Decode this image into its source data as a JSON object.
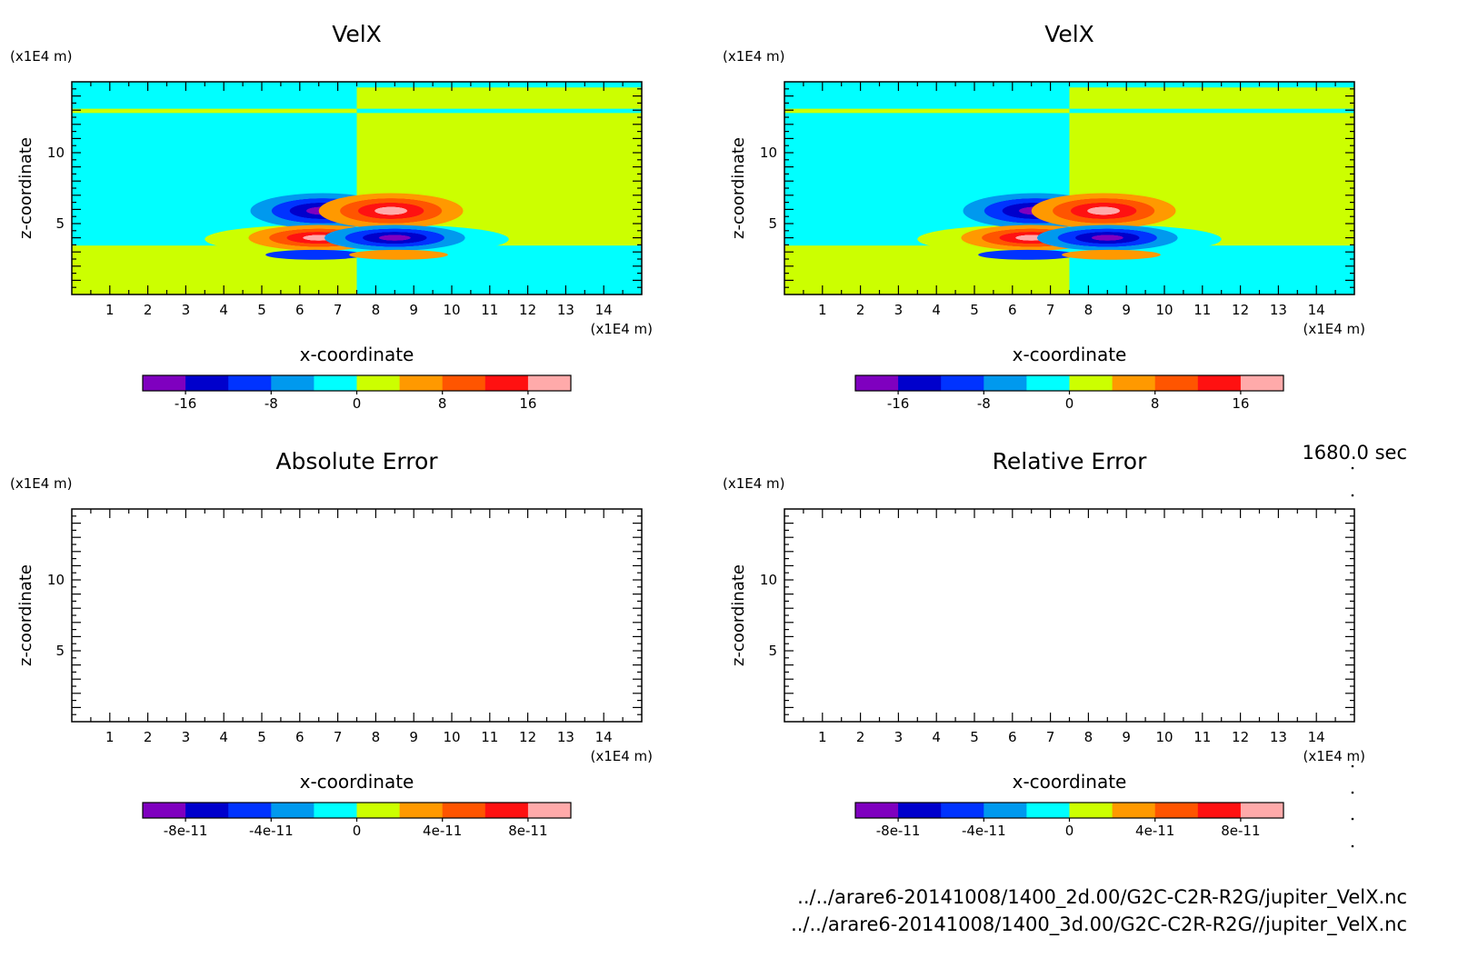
{
  "chart_data": [
    {
      "type": "heatmap",
      "title": "VelX",
      "xlabel": "x-coordinate",
      "ylabel": "z-coordinate",
      "x_unit": "(x1E4 m)",
      "y_unit": "(x1E4 m)",
      "xlim": [
        0,
        15
      ],
      "ylim": [
        0,
        15
      ],
      "x_ticks": [
        1,
        2,
        3,
        4,
        5,
        6,
        7,
        8,
        9,
        10,
        11,
        12,
        13,
        14
      ],
      "y_ticks": [
        5,
        10
      ],
      "colorbar": {
        "levels": [
          -20,
          -16,
          -12,
          -8,
          -4,
          0,
          4,
          8,
          12,
          16,
          20
        ],
        "tick_values": [
          -16,
          -8,
          0,
          8,
          16
        ],
        "tick_labels": [
          "-16",
          "-8",
          "0",
          "8",
          "16"
        ]
      },
      "filled": true
    },
    {
      "type": "heatmap",
      "title": "VelX",
      "xlabel": "x-coordinate",
      "ylabel": "z-coordinate",
      "x_unit": "(x1E4 m)",
      "y_unit": "(x1E4 m)",
      "xlim": [
        0,
        15
      ],
      "ylim": [
        0,
        15
      ],
      "x_ticks": [
        1,
        2,
        3,
        4,
        5,
        6,
        7,
        8,
        9,
        10,
        11,
        12,
        13,
        14
      ],
      "y_ticks": [
        5,
        10
      ],
      "colorbar": {
        "levels": [
          -20,
          -16,
          -12,
          -8,
          -4,
          0,
          4,
          8,
          12,
          16,
          20
        ],
        "tick_values": [
          -16,
          -8,
          0,
          8,
          16
        ],
        "tick_labels": [
          "-16",
          "-8",
          "0",
          "8",
          "16"
        ]
      },
      "filled": true
    },
    {
      "type": "heatmap",
      "title": "Absolute Error",
      "xlabel": "x-coordinate",
      "ylabel": "z-coordinate",
      "x_unit": "(x1E4 m)",
      "y_unit": "(x1E4 m)",
      "xlim": [
        0,
        15
      ],
      "ylim": [
        0,
        15
      ],
      "x_ticks": [
        1,
        2,
        3,
        4,
        5,
        6,
        7,
        8,
        9,
        10,
        11,
        12,
        13,
        14
      ],
      "y_ticks": [
        5,
        10
      ],
      "colorbar": {
        "levels": [
          -1e-10,
          -8e-11,
          -6e-11,
          -4e-11,
          -2e-11,
          0,
          2e-11,
          4e-11,
          6e-11,
          8e-11,
          1e-10
        ],
        "tick_values": [
          -8e-11,
          -4e-11,
          0,
          4e-11,
          8e-11
        ],
        "tick_labels": [
          "-8e-11",
          "-4e-11",
          "0",
          "4e-11",
          "8e-11"
        ]
      },
      "filled": false
    },
    {
      "type": "heatmap",
      "title": "Relative Error",
      "xlabel": "x-coordinate",
      "ylabel": "z-coordinate",
      "x_unit": "(x1E4 m)",
      "y_unit": "(x1E4 m)",
      "xlim": [
        0,
        15
      ],
      "ylim": [
        0,
        15
      ],
      "x_ticks": [
        1,
        2,
        3,
        4,
        5,
        6,
        7,
        8,
        9,
        10,
        11,
        12,
        13,
        14
      ],
      "y_ticks": [
        5,
        10
      ],
      "colorbar": {
        "levels": [
          -1e-10,
          -8e-11,
          -6e-11,
          -4e-11,
          -2e-11,
          0,
          2e-11,
          4e-11,
          6e-11,
          8e-11,
          1e-10
        ],
        "tick_values": [
          -8e-11,
          -4e-11,
          0,
          4e-11,
          8e-11
        ],
        "tick_labels": [
          "-8e-11",
          "-4e-11",
          "0",
          "4e-11",
          "8e-11"
        ]
      },
      "filled": false
    }
  ],
  "palette": [
    "#7f00bf",
    "#0000cc",
    "#0033ff",
    "#0099ee",
    "#00ffff",
    "#ccff00",
    "#ff9900",
    "#ff5500",
    "#ff1111",
    "#ffaaaa"
  ],
  "time_label": "1680.0 sec",
  "file_paths": [
    "../../arare6-20141008/1400_2d.00/G2C-C2R-R2G/jupiter_VelX.nc",
    "../../arare6-20141008/1400_3d.00/G2C-C2R-R2G//jupiter_VelX.nc"
  ]
}
